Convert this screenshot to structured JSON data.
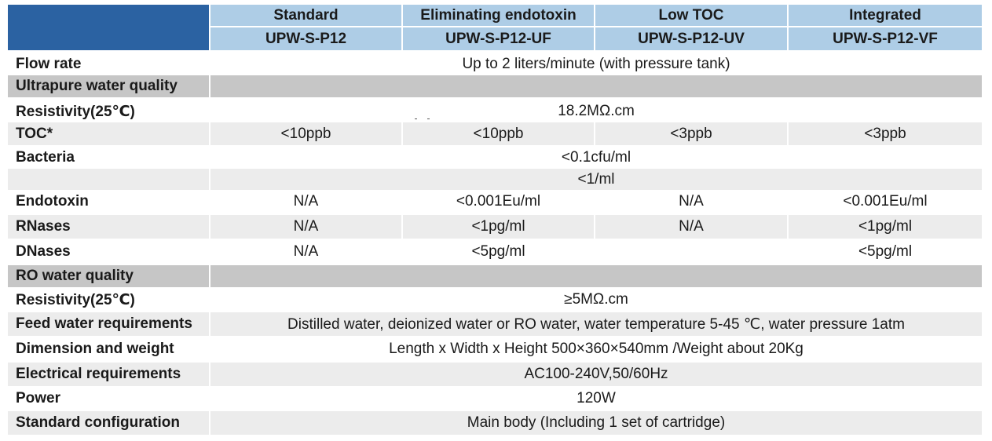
{
  "header": {
    "variants": [
      "Standard",
      "Eliminating endotoxin",
      "Low TOC",
      "Integrated"
    ],
    "models": [
      "UPW-S-P12",
      "UPW-S-P12-UF",
      "UPW-S-P12-UV",
      "UPW-S-P12-VF"
    ]
  },
  "flow_rate": {
    "label": "Flow rate",
    "value": "Up to 2 liters/minute (with pressure tank)"
  },
  "upw_section": {
    "title": "Ultrapure water quality"
  },
  "upw_resistivity": {
    "label": "Resistivity(25℃)",
    "value": "18.2MΩ.cm"
  },
  "toc": {
    "label": "TOC*",
    "values": [
      "<10ppb",
      "<10ppb",
      "<3ppb",
      "<3ppb"
    ]
  },
  "bacteria": {
    "label": "Bacteria",
    "value": "<0.1cfu/ml",
    "value2": "<1/ml"
  },
  "endotoxin": {
    "label": "Endotoxin",
    "values": [
      "N/A",
      "<0.001Eu/ml",
      "N/A",
      "<0.001Eu/ml"
    ]
  },
  "rnases": {
    "label": "RNases",
    "values": [
      "N/A",
      "<1pg/ml",
      "N/A",
      "<1pg/ml"
    ]
  },
  "dnases": {
    "label": "DNases",
    "values": [
      "N/A",
      "<5pg/ml",
      "",
      "<5pg/ml"
    ]
  },
  "ro_section": {
    "title": "RO water quality"
  },
  "ro_resistivity": {
    "label": "Resistivity(25℃)",
    "value": "≥5MΩ.cm"
  },
  "feed_water": {
    "label": "Feed water requirements",
    "value": "Distilled water, deionized water or RO water, water temperature 5-45 ℃, water pressure 1atm"
  },
  "dimension": {
    "label": "Dimension and weight",
    "value": "Length x Width x Height 500×360×540mm /Weight about 20Kg"
  },
  "electrical": {
    "label": "Electrical requirements",
    "value": "AC100-240V,50/60Hz"
  },
  "power": {
    "label": "Power",
    "value": "120W"
  },
  "configuration": {
    "label": "Standard configuration",
    "value": "Main body (Including 1 set of cartridge)"
  }
}
